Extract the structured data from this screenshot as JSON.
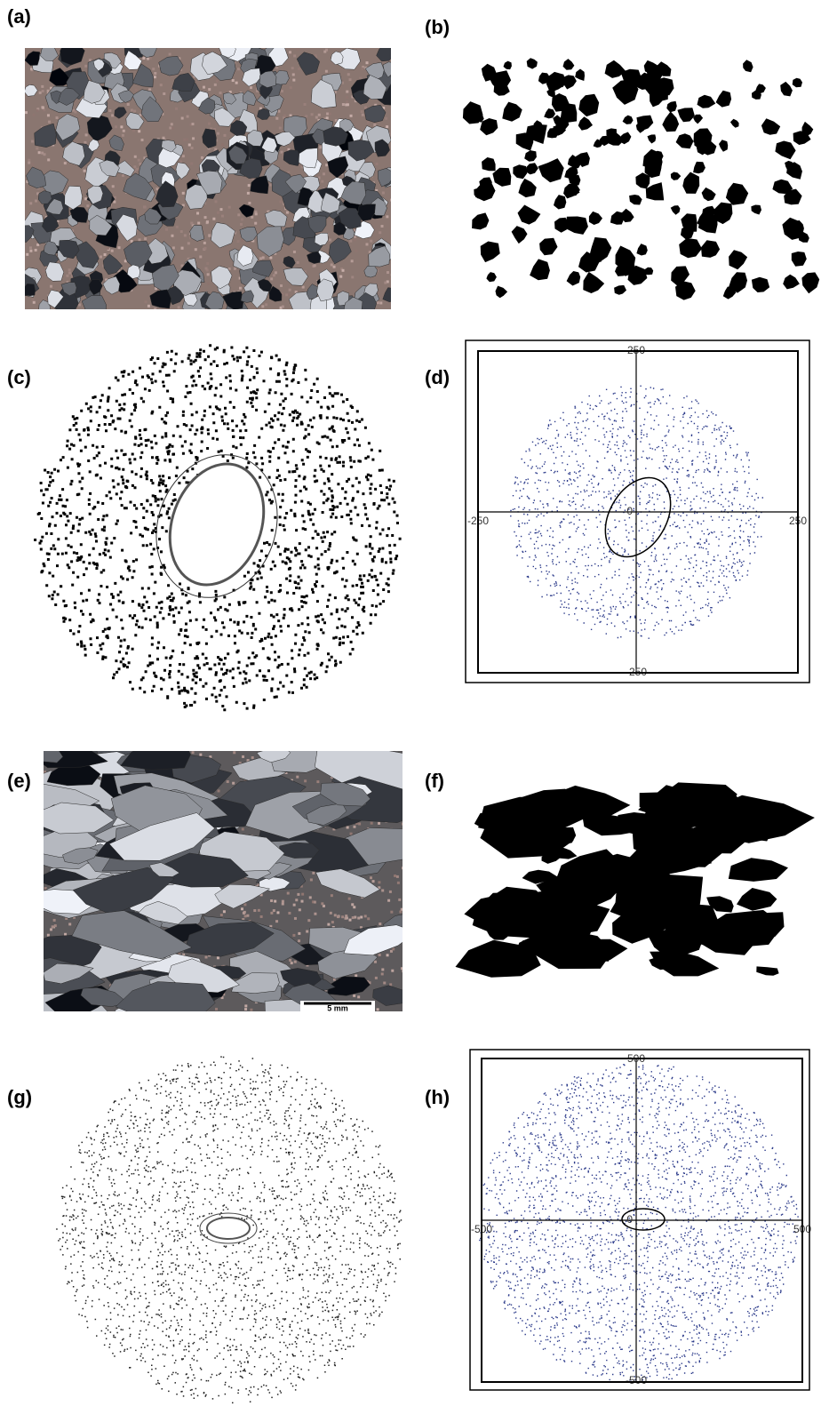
{
  "panels": [
    {
      "label": "(a)"
    },
    {
      "label": "(b)"
    },
    {
      "label": "(c)"
    },
    {
      "label": "(d)",
      "axis_labels": {
        "top": 250,
        "bottom": -250,
        "left": -250,
        "right": 250,
        "origin": 0
      }
    },
    {
      "label": "(e)",
      "scale_bar": "5 mm"
    },
    {
      "label": "(f)"
    },
    {
      "label": "(g)"
    },
    {
      "label": "(h)",
      "axis_labels": {
        "top": 500,
        "bottom": -500,
        "left": -500,
        "right": 500,
        "origin": 0
      }
    }
  ]
}
